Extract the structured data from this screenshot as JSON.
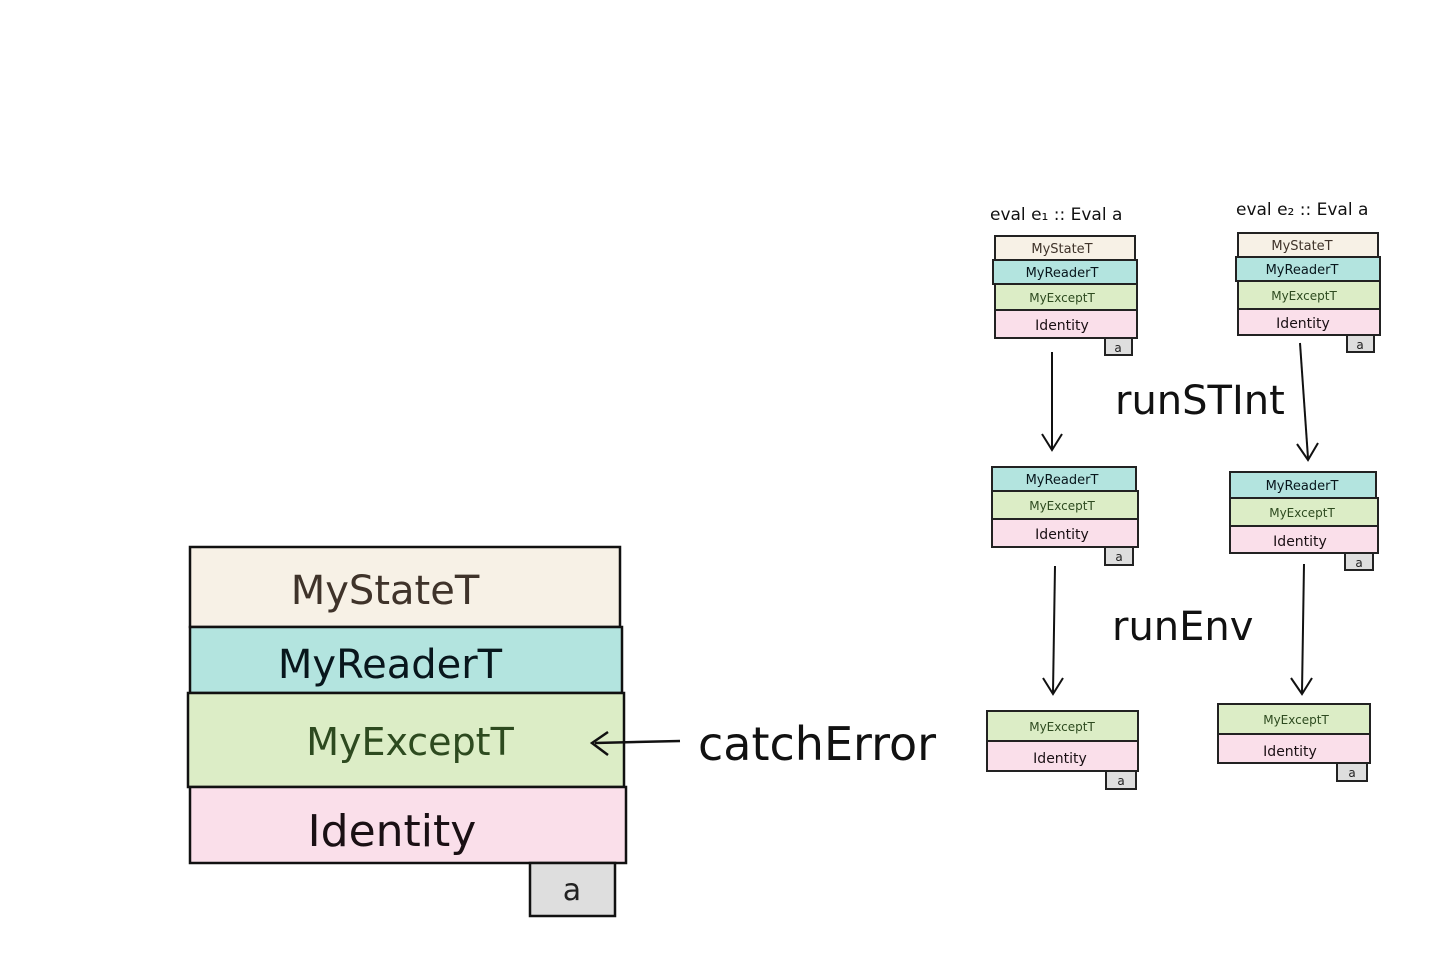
{
  "colors": {
    "state": "#f7f1e6",
    "reader": "#b3e4df",
    "except": "#dcedc6",
    "identity": "#fadfea",
    "value_box": "#dedede",
    "ink": "#111111",
    "state_text": "#3f332a",
    "reader_text": "#08161c",
    "except_text": "#2d4a1f",
    "identity_text": "#1a1014"
  },
  "layers": {
    "state": "MyStateT",
    "reader": "MyReaderT",
    "except": "MyExceptT",
    "identity": "Identity"
  },
  "value_label": "a",
  "main_stack": {
    "arrow_label": "catchError"
  },
  "columns": [
    {
      "title": "eval e₁ :: Eval a"
    },
    {
      "title": "eval e₂ :: Eval a"
    }
  ],
  "transforms": [
    {
      "label": "runSTInt"
    },
    {
      "label": "runEnv"
    }
  ]
}
